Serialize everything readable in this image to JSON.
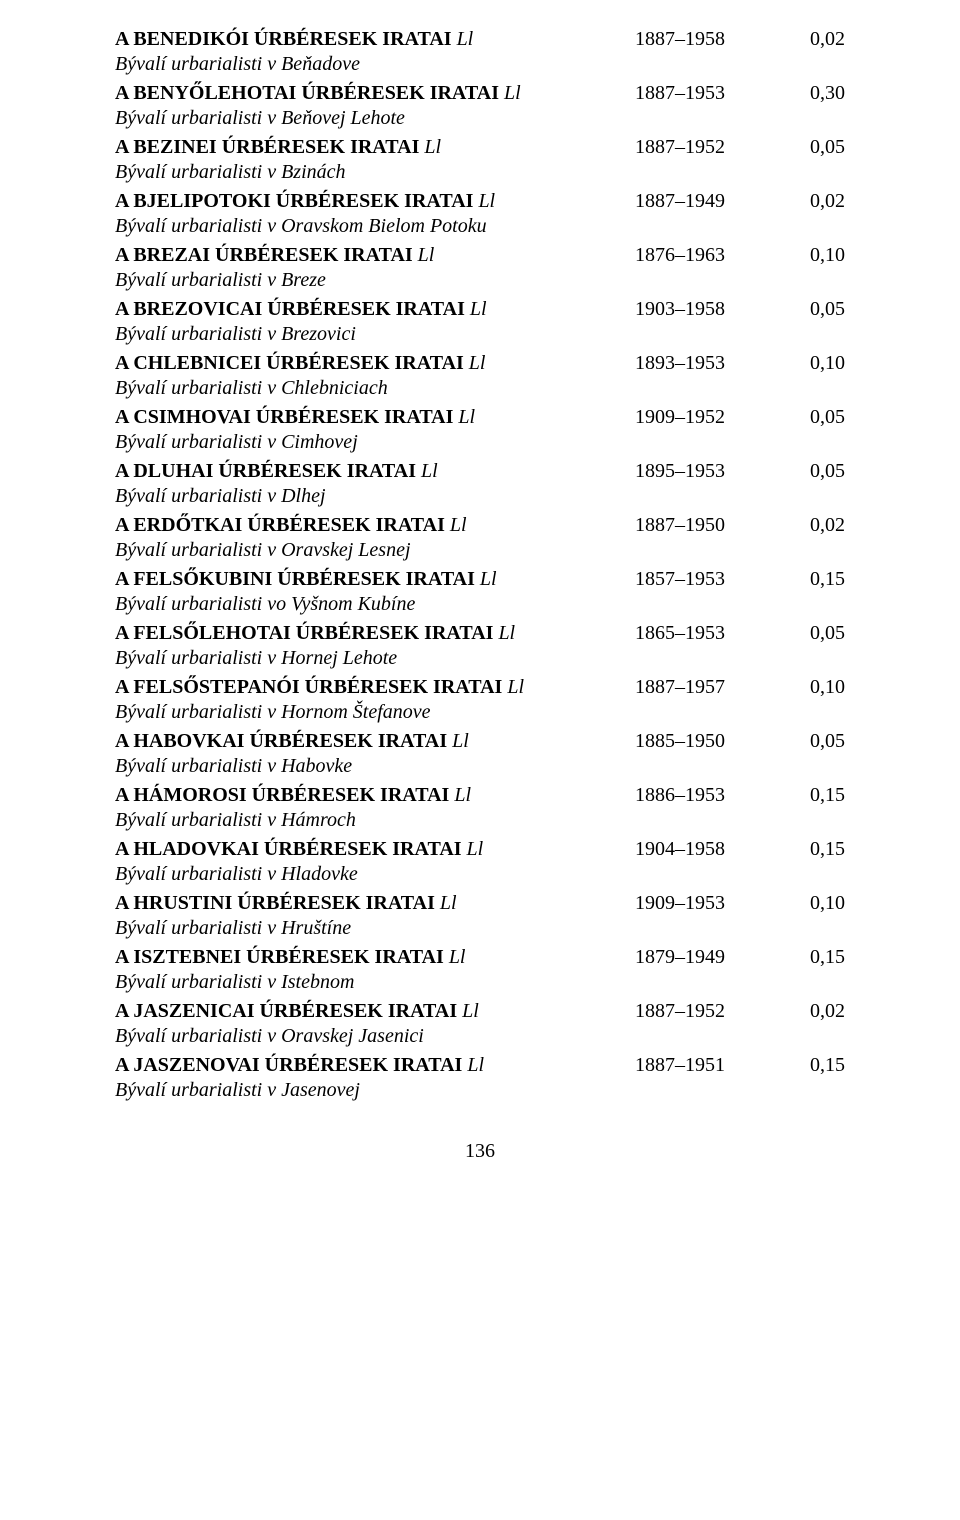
{
  "suffix": "Ll",
  "page_number": "136",
  "entries": [
    {
      "title": "A BENEDIKÓI ÚRBÉRESEK IRATAI",
      "years": "1887–1958",
      "value": "0,02",
      "subtitle": "Bývalí urbarialisti v Beňadove"
    },
    {
      "title": "A BENYŐLEHOTAI ÚRBÉRESEK IRATAI",
      "years": "1887–1953",
      "value": "0,30",
      "subtitle": "Bývalí urbarialisti v Beňovej Lehote"
    },
    {
      "title": "A BEZINEI ÚRBÉRESEK IRATAI",
      "years": "1887–1952",
      "value": "0,05",
      "subtitle": "Bývalí urbarialisti v Bzinách"
    },
    {
      "title": "A BJELIPOTOKI ÚRBÉRESEK IRATAI",
      "years": "1887–1949",
      "value": "0,02",
      "subtitle": "Bývalí urbarialisti v Oravskom Bielom Potoku"
    },
    {
      "title": "A BREZAI ÚRBÉRESEK IRATAI",
      "years": "1876–1963",
      "value": "0,10",
      "subtitle": "Bývalí urbarialisti v Breze"
    },
    {
      "title": "A BREZOVICAI ÚRBÉRESEK IRATAI",
      "years": "1903–1958",
      "value": "0,05",
      "subtitle": "Bývalí urbarialisti v Brezovici"
    },
    {
      "title": "A CHLEBNICEI ÚRBÉRESEK IRATAI",
      "years": "1893–1953",
      "value": "0,10",
      "subtitle": "Bývalí urbarialisti v Chlebniciach"
    },
    {
      "title": "A CSIMHOVAI ÚRBÉRESEK IRATAI",
      "years": "1909–1952",
      "value": "0,05",
      "subtitle": "Bývalí urbarialisti v Cimhovej"
    },
    {
      "title": "A DLUHAI ÚRBÉRESEK IRATAI",
      "years": "1895–1953",
      "value": "0,05",
      "subtitle": "Bývalí urbarialisti v Dlhej"
    },
    {
      "title": "A ERDŐTKAI ÚRBÉRESEK IRATAI",
      "years": "1887–1950",
      "value": "0,02",
      "subtitle": "Bývalí urbarialisti v Oravskej Lesnej"
    },
    {
      "title": "A FELSŐKUBINI ÚRBÉRESEK IRATAI",
      "years": "1857–1953",
      "value": "0,15",
      "subtitle": "Bývalí urbarialisti vo Vyšnom Kubíne"
    },
    {
      "title": "A FELSŐLEHOTAI ÚRBÉRESEK IRATAI",
      "years": "1865–1953",
      "value": "0,05",
      "subtitle": "Bývalí urbarialisti v Hornej Lehote"
    },
    {
      "title": "A FELSŐSTEPANÓI ÚRBÉRESEK IRATAI",
      "years": "1887–1957",
      "value": "0,10",
      "subtitle": "Bývalí urbarialisti v Hornom Štefanove"
    },
    {
      "title": "A HABOVKAI ÚRBÉRESEK IRATAI",
      "years": "1885–1950",
      "value": "0,05",
      "subtitle": "Bývalí urbarialisti v Habovke"
    },
    {
      "title": "A HÁMOROSI ÚRBÉRESEK IRATAI",
      "years": "1886–1953",
      "value": "0,15",
      "subtitle": "Bývalí urbarialisti v Hámroch"
    },
    {
      "title": "A HLADOVKAI ÚRBÉRESEK IRATAI",
      "years": "1904–1958",
      "value": "0,15",
      "subtitle": "Bývalí urbarialisti v Hladovke"
    },
    {
      "title": "A HRUSTINI ÚRBÉRESEK IRATAI",
      "years": "1909–1953",
      "value": "0,10",
      "subtitle": "Bývalí urbarialisti v Hruštíne"
    },
    {
      "title": "A ISZTEBNEI ÚRBÉRESEK IRATAI",
      "years": "1879–1949",
      "value": "0,15",
      "subtitle": "Bývalí urbarialisti v Istebnom"
    },
    {
      "title": "A JASZENICAI ÚRBÉRESEK IRATAI",
      "years": "1887–1952",
      "value": "0,02",
      "subtitle": "Bývalí urbarialisti v Oravskej Jasenici"
    },
    {
      "title": "A JASZENOVAI ÚRBÉRESEK IRATAI",
      "years": "1887–1951",
      "value": "0,15",
      "subtitle": "Bývalí urbarialisti v Jasenovej"
    }
  ]
}
